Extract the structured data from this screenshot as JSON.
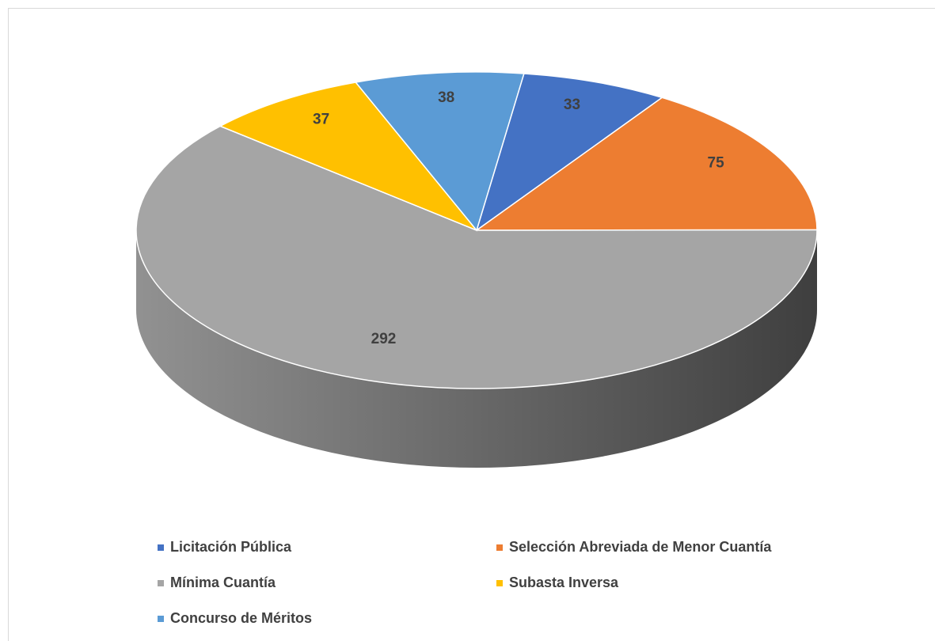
{
  "chart_data": {
    "type": "pie3d",
    "categories": [
      "Licitación Pública",
      "Selección Abreviada de Menor Cuantía",
      "Mínima Cuantía",
      "Subasta Inversa",
      "Concurso de Méritos"
    ],
    "values": [
      33,
      75,
      292,
      37,
      38
    ],
    "colors": [
      "#4472c4",
      "#ed7d31",
      "#a5a5a5",
      "#ffc000",
      "#5b9bd5"
    ],
    "legend": "bottom"
  }
}
